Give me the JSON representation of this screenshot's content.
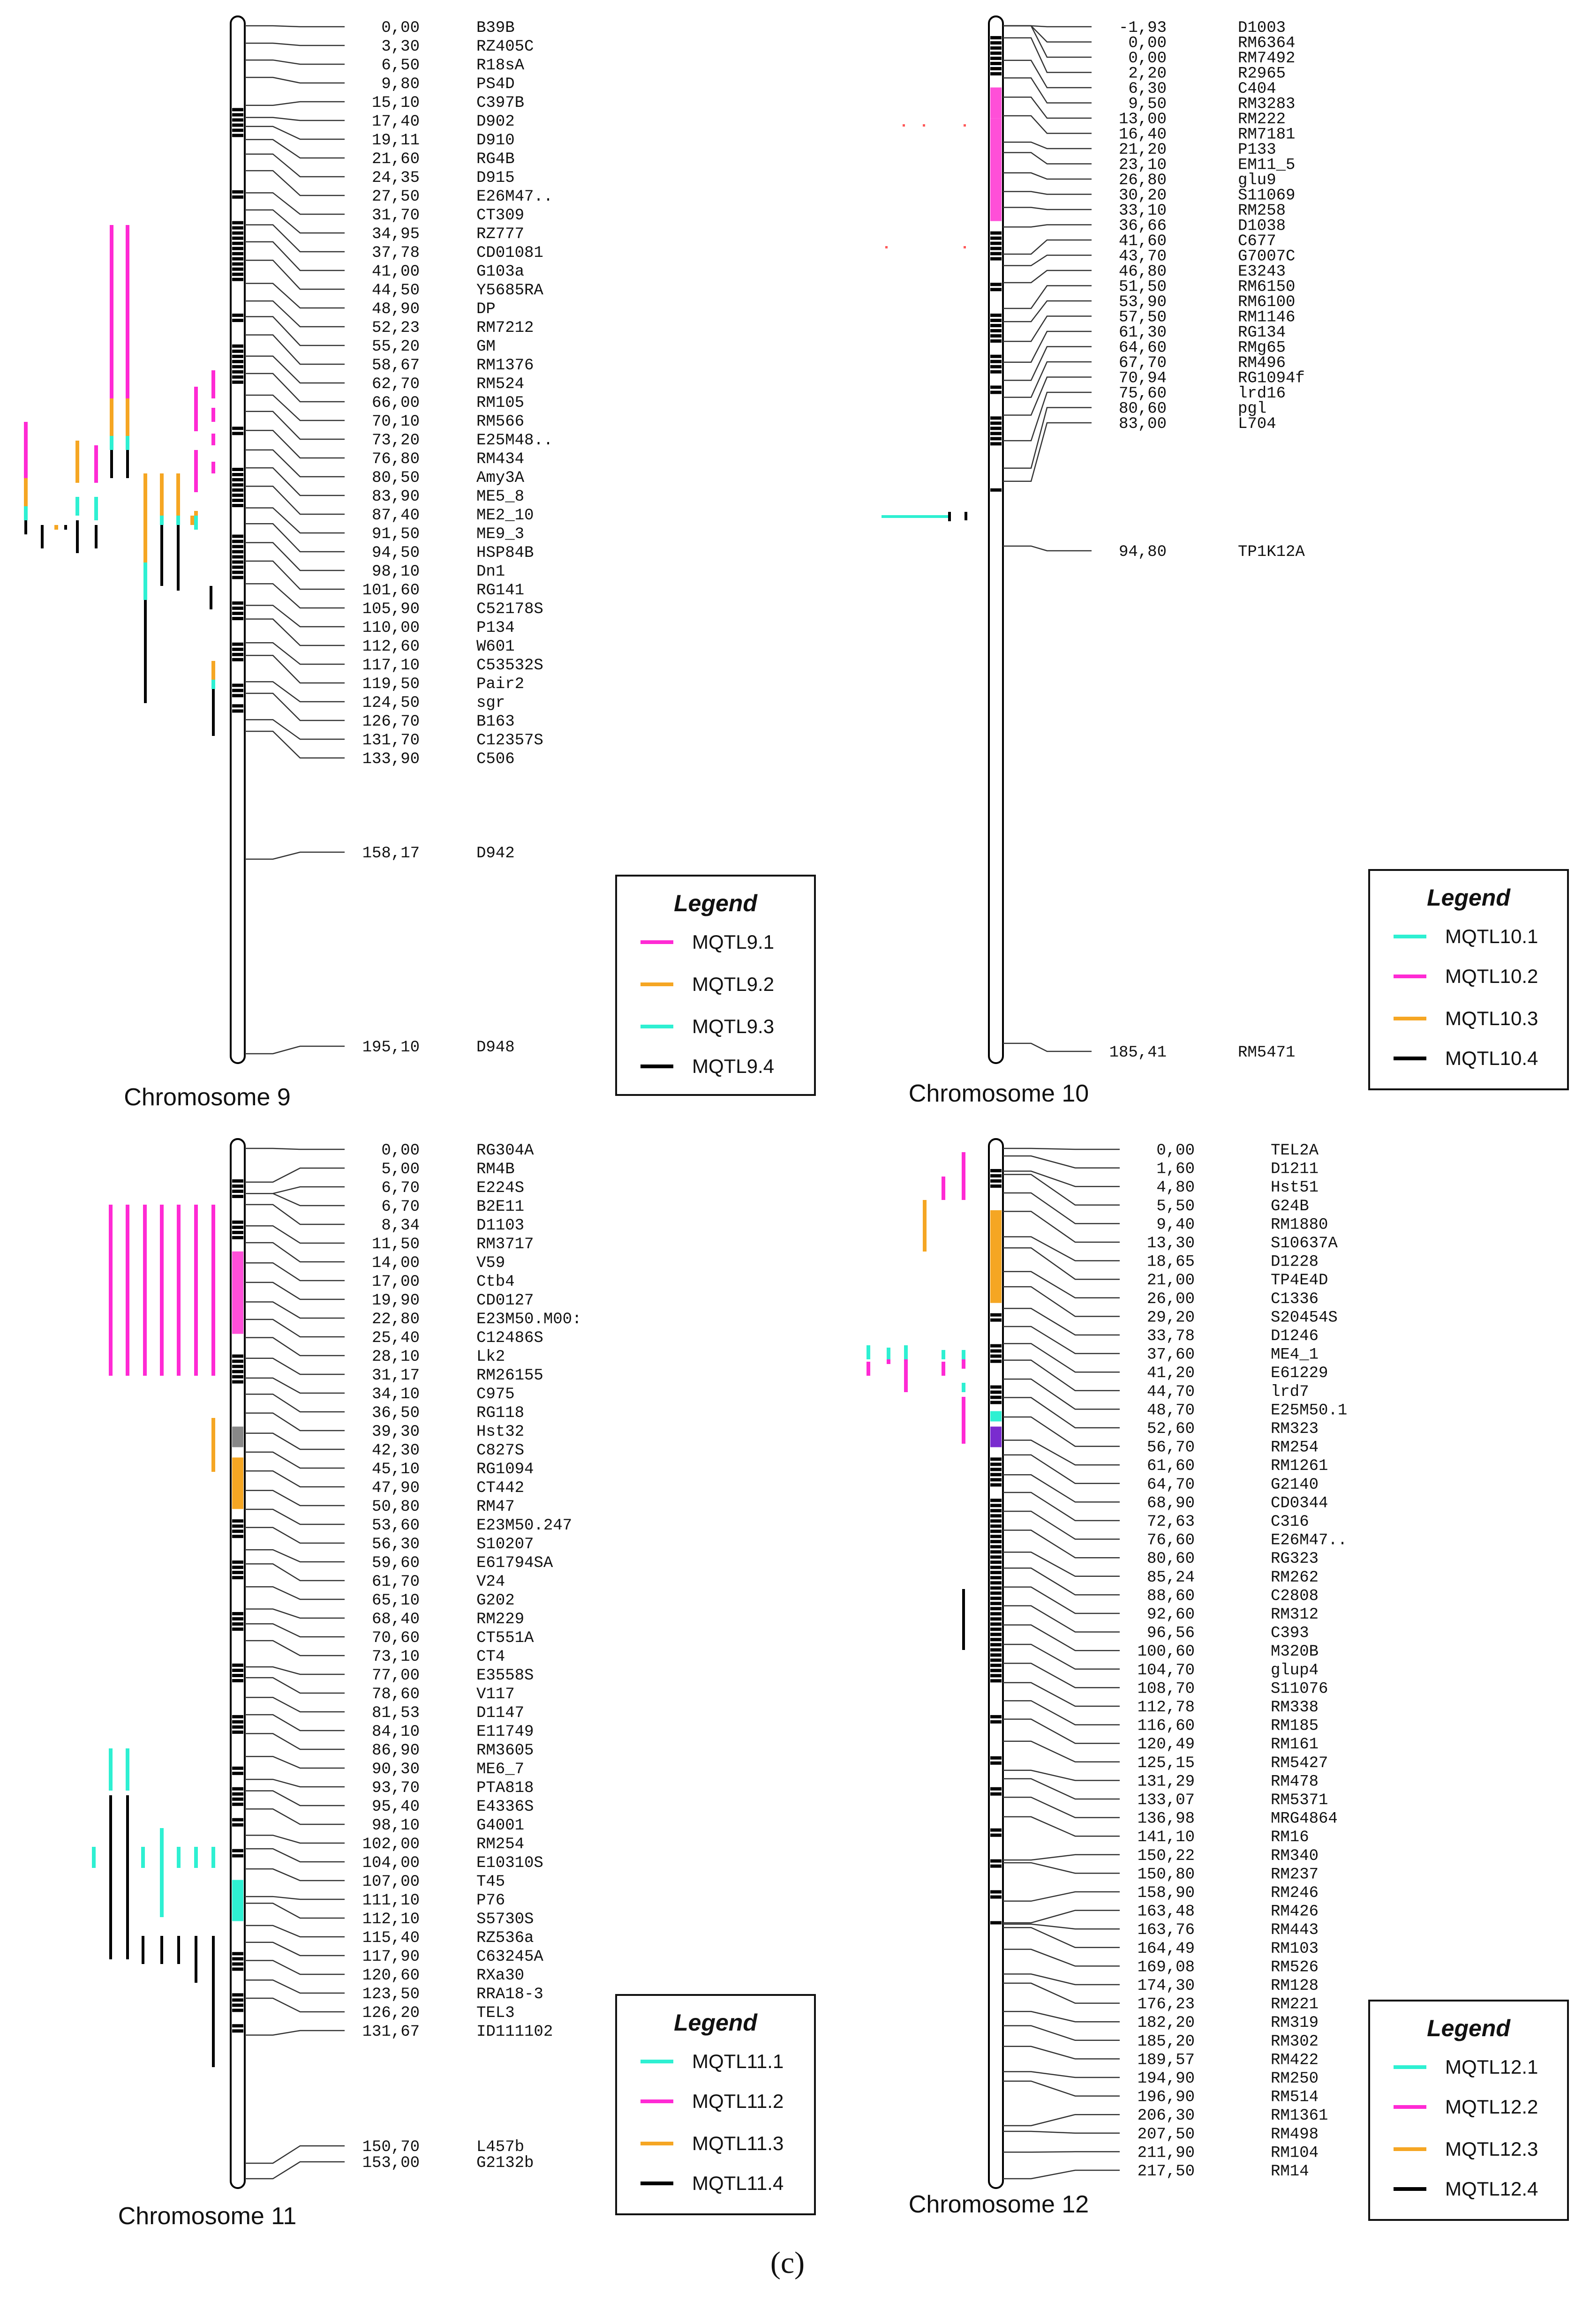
{
  "panel_label": "(c)",
  "colors": {
    "q1": "#2ef0d2",
    "q2": "#ff2ad4",
    "q3": "#f5a623",
    "q4": "#000000"
  },
  "chromosomes": [
    {
      "title": "Chromosome 9",
      "length": 195.1,
      "markers": [
        {
          "pos": "0,00",
          "name": "B39B"
        },
        {
          "pos": "3,30",
          "name": "RZ405C"
        },
        {
          "pos": "6,50",
          "name": "R18sA"
        },
        {
          "pos": "9,80",
          "name": "PS4D"
        },
        {
          "pos": "15,10",
          "name": "C397B"
        },
        {
          "pos": "17,40",
          "name": "D902"
        },
        {
          "pos": "19,11",
          "name": "D910"
        },
        {
          "pos": "21,60",
          "name": "RG4B"
        },
        {
          "pos": "24,35",
          "name": "D915"
        },
        {
          "pos": "27,50",
          "name": "E26M47.."
        },
        {
          "pos": "31,70",
          "name": "CT309"
        },
        {
          "pos": "34,95",
          "name": "RZ777"
        },
        {
          "pos": "37,78",
          "name": "CD01081"
        },
        {
          "pos": "41,00",
          "name": "G103a"
        },
        {
          "pos": "44,50",
          "name": "Y5685RA"
        },
        {
          "pos": "48,90",
          "name": "DP"
        },
        {
          "pos": "52,23",
          "name": "RM7212"
        },
        {
          "pos": "55,20",
          "name": "GM"
        },
        {
          "pos": "58,67",
          "name": "RM1376"
        },
        {
          "pos": "62,70",
          "name": "RM524"
        },
        {
          "pos": "66,00",
          "name": "RM105"
        },
        {
          "pos": "70,10",
          "name": "RM566"
        },
        {
          "pos": "73,20",
          "name": "E25M48.."
        },
        {
          "pos": "76,80",
          "name": "RM434"
        },
        {
          "pos": "80,50",
          "name": "Amy3A"
        },
        {
          "pos": "83,90",
          "name": "ME5_8"
        },
        {
          "pos": "87,40",
          "name": "ME2_10"
        },
        {
          "pos": "91,50",
          "name": "ME9_3"
        },
        {
          "pos": "94,50",
          "name": "HSP84B"
        },
        {
          "pos": "98,10",
          "name": "Dn1"
        },
        {
          "pos": "101,60",
          "name": "RG141"
        },
        {
          "pos": "105,90",
          "name": "C52178S"
        },
        {
          "pos": "110,00",
          "name": "P134"
        },
        {
          "pos": "112,60",
          "name": "W601"
        },
        {
          "pos": "117,10",
          "name": "C53532S"
        },
        {
          "pos": "119,50",
          "name": "Pair2"
        },
        {
          "pos": "124,50",
          "name": "sgr"
        },
        {
          "pos": "126,70",
          "name": "B163"
        },
        {
          "pos": "131,70",
          "name": "C12357S"
        },
        {
          "pos": "133,90",
          "name": "C506"
        },
        {
          "pos": "158,17",
          "name": "D942"
        },
        {
          "pos": "195,10",
          "name": "D948"
        }
      ],
      "legend": {
        "title": "Legend",
        "items": [
          "MQTL9.1",
          "MQTL9.2",
          "MQTL9.3",
          "MQTL9.4"
        ]
      }
    },
    {
      "title": "Chromosome 10",
      "length": 187.3,
      "markers": [
        {
          "pos": "-1,93",
          "name": "D1003"
        },
        {
          "pos": "0,00",
          "name": "RM6364"
        },
        {
          "pos": "0,00",
          "name": "RM7492"
        },
        {
          "pos": "2,20",
          "name": "R2965"
        },
        {
          "pos": "6,30",
          "name": "C404"
        },
        {
          "pos": "9,50",
          "name": "RM3283"
        },
        {
          "pos": "13,00",
          "name": "RM222"
        },
        {
          "pos": "16,40",
          "name": "RM7181"
        },
        {
          "pos": "21,20",
          "name": "P133"
        },
        {
          "pos": "23,10",
          "name": "EM11_5"
        },
        {
          "pos": "26,80",
          "name": "glu9"
        },
        {
          "pos": "30,20",
          "name": "S11069"
        },
        {
          "pos": "33,10",
          "name": "RM258"
        },
        {
          "pos": "36,66",
          "name": "D1038"
        },
        {
          "pos": "41,60",
          "name": "C677"
        },
        {
          "pos": "43,70",
          "name": "G7007C"
        },
        {
          "pos": "46,80",
          "name": "E3243"
        },
        {
          "pos": "51,50",
          "name": "RM6150"
        },
        {
          "pos": "53,90",
          "name": "RM6100"
        },
        {
          "pos": "57,50",
          "name": "RM1146"
        },
        {
          "pos": "61,30",
          "name": "RG134"
        },
        {
          "pos": "64,60",
          "name": "RMg65"
        },
        {
          "pos": "67,70",
          "name": "RM496"
        },
        {
          "pos": "70,94",
          "name": "RG1094f"
        },
        {
          "pos": "75,60",
          "name": "lrd16"
        },
        {
          "pos": "80,60",
          "name": "pgl"
        },
        {
          "pos": "83,00",
          "name": "L704"
        },
        {
          "pos": "94,80",
          "name": "TP1K12A"
        },
        {
          "pos": "185,41",
          "name": "RM5471"
        }
      ],
      "legend": {
        "title": "Legend",
        "items": [
          "MQTL10.1",
          "MQTL10.2",
          "MQTL10.3",
          "MQTL10.4"
        ]
      }
    },
    {
      "title": "Chromosome 11",
      "length": 153.0,
      "markers": [
        {
          "pos": "0,00",
          "name": "RG304A"
        },
        {
          "pos": "5,00",
          "name": "RM4B"
        },
        {
          "pos": "6,70",
          "name": "E224S"
        },
        {
          "pos": "6,70",
          "name": "B2E11"
        },
        {
          "pos": "8,34",
          "name": "D1103"
        },
        {
          "pos": "11,50",
          "name": "RM3717"
        },
        {
          "pos": "14,00",
          "name": "V59"
        },
        {
          "pos": "17,00",
          "name": "Ctb4"
        },
        {
          "pos": "19,90",
          "name": "CD0127"
        },
        {
          "pos": "22,80",
          "name": "E23M50.M00:"
        },
        {
          "pos": "25,40",
          "name": "C12486S"
        },
        {
          "pos": "28,10",
          "name": "Lk2"
        },
        {
          "pos": "31,17",
          "name": "RM26155"
        },
        {
          "pos": "34,10",
          "name": "C975"
        },
        {
          "pos": "36,50",
          "name": "RG118"
        },
        {
          "pos": "39,30",
          "name": "Hst32"
        },
        {
          "pos": "42,30",
          "name": "C827S"
        },
        {
          "pos": "45,10",
          "name": "RG1094"
        },
        {
          "pos": "47,90",
          "name": "CT442"
        },
        {
          "pos": "50,80",
          "name": "RM47"
        },
        {
          "pos": "53,60",
          "name": "E23M50.247"
        },
        {
          "pos": "56,30",
          "name": "S10207"
        },
        {
          "pos": "59,60",
          "name": "E61794SA"
        },
        {
          "pos": "61,70",
          "name": "V24"
        },
        {
          "pos": "65,10",
          "name": "G202"
        },
        {
          "pos": "68,40",
          "name": "RM229"
        },
        {
          "pos": "70,60",
          "name": "CT551A"
        },
        {
          "pos": "73,10",
          "name": "CT4"
        },
        {
          "pos": "77,00",
          "name": "E3558S"
        },
        {
          "pos": "78,60",
          "name": "V117"
        },
        {
          "pos": "81,53",
          "name": "D1147"
        },
        {
          "pos": "84,10",
          "name": "E11749"
        },
        {
          "pos": "86,90",
          "name": "RM3605"
        },
        {
          "pos": "90,30",
          "name": "ME6_7"
        },
        {
          "pos": "93,70",
          "name": "PTA818"
        },
        {
          "pos": "95,40",
          "name": "E4336S"
        },
        {
          "pos": "98,10",
          "name": "G4001"
        },
        {
          "pos": "102,00",
          "name": "RM254"
        },
        {
          "pos": "104,00",
          "name": "E10310S"
        },
        {
          "pos": "107,00",
          "name": "T45"
        },
        {
          "pos": "111,10",
          "name": "P76"
        },
        {
          "pos": "112,10",
          "name": "S5730S"
        },
        {
          "pos": "115,40",
          "name": "RZ536a"
        },
        {
          "pos": "117,90",
          "name": "C63245A"
        },
        {
          "pos": "120,60",
          "name": "RXa30"
        },
        {
          "pos": "123,50",
          "name": "RRA18-3"
        },
        {
          "pos": "126,20",
          "name": "TEL3"
        },
        {
          "pos": "131,67",
          "name": "ID111102"
        },
        {
          "pos": "150,70",
          "name": "L457b"
        },
        {
          "pos": "153,00",
          "name": "G2132b"
        }
      ],
      "legend": {
        "title": "Legend",
        "items": [
          "MQTL11.1",
          "MQTL11.2",
          "MQTL11.3",
          "MQTL11.4"
        ]
      }
    },
    {
      "title": "Chromosome 12",
      "length": 217.5,
      "markers": [
        {
          "pos": "0,00",
          "name": "TEL2A"
        },
        {
          "pos": "1,60",
          "name": "D1211"
        },
        {
          "pos": "4,80",
          "name": "Hst51"
        },
        {
          "pos": "5,50",
          "name": "G24B"
        },
        {
          "pos": "9,40",
          "name": "RM1880"
        },
        {
          "pos": "13,30",
          "name": "S10637A"
        },
        {
          "pos": "18,65",
          "name": "D1228"
        },
        {
          "pos": "21,00",
          "name": "TP4E4D"
        },
        {
          "pos": "26,00",
          "name": "C1336"
        },
        {
          "pos": "29,20",
          "name": "S20454S"
        },
        {
          "pos": "33,78",
          "name": "D1246"
        },
        {
          "pos": "37,60",
          "name": "ME4_1"
        },
        {
          "pos": "41,20",
          "name": "E61229"
        },
        {
          "pos": "44,70",
          "name": "lrd7"
        },
        {
          "pos": "48,70",
          "name": "E25M50.1"
        },
        {
          "pos": "52,60",
          "name": "RM323"
        },
        {
          "pos": "56,70",
          "name": "RM254"
        },
        {
          "pos": "61,60",
          "name": "RM1261"
        },
        {
          "pos": "64,70",
          "name": "G2140"
        },
        {
          "pos": "68,90",
          "name": "CD0344"
        },
        {
          "pos": "72,63",
          "name": "C316"
        },
        {
          "pos": "76,60",
          "name": "E26M47.."
        },
        {
          "pos": "80,60",
          "name": "RG323"
        },
        {
          "pos": "85,24",
          "name": "RM262"
        },
        {
          "pos": "88,60",
          "name": "C2808"
        },
        {
          "pos": "92,60",
          "name": "RM312"
        },
        {
          "pos": "96,56",
          "name": "C393"
        },
        {
          "pos": "100,60",
          "name": "M320B"
        },
        {
          "pos": "104,70",
          "name": "glup4"
        },
        {
          "pos": "108,70",
          "name": "S11076"
        },
        {
          "pos": "112,78",
          "name": "RM338"
        },
        {
          "pos": "116,60",
          "name": "RM185"
        },
        {
          "pos": "120,49",
          "name": "RM161"
        },
        {
          "pos": "125,15",
          "name": "RM5427"
        },
        {
          "pos": "131,29",
          "name": "RM478"
        },
        {
          "pos": "133,07",
          "name": "RM5371"
        },
        {
          "pos": "136,98",
          "name": "MRG4864"
        },
        {
          "pos": "141,10",
          "name": "RM16"
        },
        {
          "pos": "150,22",
          "name": "RM340"
        },
        {
          "pos": "150,80",
          "name": "RM237"
        },
        {
          "pos": "158,90",
          "name": "RM246"
        },
        {
          "pos": "163,48",
          "name": "RM426"
        },
        {
          "pos": "163,76",
          "name": "RM443"
        },
        {
          "pos": "164,49",
          "name": "RM103"
        },
        {
          "pos": "169,08",
          "name": "RM526"
        },
        {
          "pos": "174,30",
          "name": "RM128"
        },
        {
          "pos": "176,23",
          "name": "RM221"
        },
        {
          "pos": "182,20",
          "name": "RM319"
        },
        {
          "pos": "185,20",
          "name": "RM302"
        },
        {
          "pos": "189,57",
          "name": "RM422"
        },
        {
          "pos": "194,90",
          "name": "RM250"
        },
        {
          "pos": "196,90",
          "name": "RM514"
        },
        {
          "pos": "206,30",
          "name": "RM1361"
        },
        {
          "pos": "207,50",
          "name": "RM498"
        },
        {
          "pos": "211,90",
          "name": "RM104"
        },
        {
          "pos": "217,50",
          "name": "RM14"
        }
      ],
      "legend": {
        "title": "Legend",
        "items": [
          "MQTL12.1",
          "MQTL12.2",
          "MQTL12.3",
          "MQTL12.4"
        ]
      }
    }
  ]
}
